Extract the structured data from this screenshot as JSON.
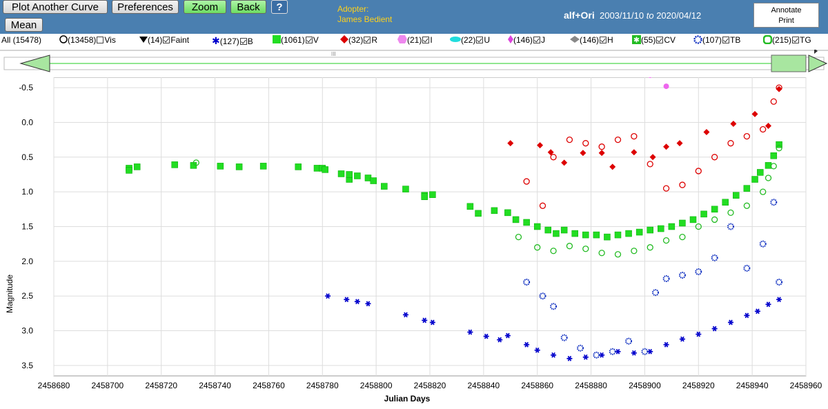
{
  "toolbar": {
    "plot_another": "Plot Another Curve",
    "preferences": "Preferences",
    "zoom": "Zoom",
    "back": "Back",
    "help": "?",
    "mean": "Mean"
  },
  "adopter": {
    "label": "Adopter:",
    "name": "James Bedient"
  },
  "star": {
    "name": "alf+Ori",
    "date_from": "2003/11/10",
    "to": "to",
    "date_to": "2020/04/12"
  },
  "annotate": {
    "line1": "Annotate",
    "line2": "Print"
  },
  "legend": {
    "all": "All (15478)",
    "vis": "(13458)",
    "vis_label": "Vis",
    "faint": "(14)",
    "faint_label": "Faint",
    "b": "(127)",
    "b_label": "B",
    "v": "(1061)",
    "v_label": "V",
    "r": "(32)",
    "r_label": "R",
    "i": "(21)",
    "i_label": "I",
    "u": "(22)",
    "u_label": "U",
    "j": "(146)",
    "j_label": "J",
    "h": "(146)",
    "h_label": "H",
    "cv": "(55)",
    "cv_label": "CV",
    "tb": "(107)",
    "tb_label": "TB",
    "tg": "(215)",
    "tg_label": "TG"
  },
  "colors": {
    "topbar": "#4a7fb0",
    "V": "#22dd22",
    "TG": "#22bb22",
    "B": "#0000cc",
    "TB": "#1030c0",
    "R": "#dd0000",
    "J": "#ee66ee"
  },
  "chart_data": {
    "type": "scatter",
    "xlabel": "Julian Days",
    "ylabel": "Magnitude",
    "xlim": [
      2458680,
      2458960
    ],
    "ylim": [
      -0.65,
      3.65
    ],
    "y_inverted": true,
    "x_ticks": [
      "2458680",
      "2458700",
      "2458720",
      "2458740",
      "2458760",
      "2458780",
      "2458800",
      "2458820",
      "2458840",
      "2458860",
      "2458880",
      "2458900",
      "2458920",
      "2458940",
      "2458960"
    ],
    "y_ticks": [
      "-0.5",
      "0.0",
      "0.5",
      "1.0",
      "1.5",
      "2.0",
      "2.5",
      "3.0",
      "3.5"
    ],
    "series": [
      {
        "name": "V",
        "marker": "filled-square",
        "x": [
          2458708,
          2458708,
          2458711,
          2458725,
          2458732,
          2458742,
          2458749,
          2458758,
          2458771,
          2458778,
          2458780,
          2458781,
          2458787,
          2458790,
          2458790,
          2458793,
          2458797,
          2458799,
          2458803,
          2458811,
          2458818,
          2458818,
          2458821,
          2458835,
          2458838,
          2458844,
          2458849,
          2458852,
          2458856,
          2458860,
          2458864,
          2458867,
          2458870,
          2458874,
          2458878,
          2458882,
          2458886,
          2458890,
          2458894,
          2458898,
          2458902,
          2458906,
          2458910,
          2458914,
          2458918,
          2458922,
          2458926,
          2458930,
          2458934,
          2458938,
          2458941,
          2458943,
          2458946,
          2458948,
          2458950
        ],
        "y": [
          0.66,
          0.69,
          0.64,
          0.61,
          0.62,
          0.63,
          0.64,
          0.63,
          0.64,
          0.66,
          0.66,
          0.68,
          0.74,
          0.82,
          0.75,
          0.77,
          0.8,
          0.84,
          0.92,
          0.96,
          1.05,
          1.07,
          1.04,
          1.21,
          1.31,
          1.27,
          1.3,
          1.4,
          1.44,
          1.5,
          1.55,
          1.6,
          1.55,
          1.6,
          1.62,
          1.62,
          1.65,
          1.62,
          1.6,
          1.58,
          1.55,
          1.53,
          1.5,
          1.45,
          1.4,
          1.32,
          1.25,
          1.15,
          1.05,
          0.95,
          0.82,
          0.72,
          0.62,
          0.48,
          0.32
        ]
      },
      {
        "name": "TG",
        "marker": "open-circle",
        "x": [
          2458733,
          2458853,
          2458860,
          2458866,
          2458872,
          2458878,
          2458884,
          2458890,
          2458896,
          2458902,
          2458908,
          2458914,
          2458920,
          2458926,
          2458932,
          2458938,
          2458944,
          2458946,
          2458948,
          2458950
        ],
        "y": [
          0.58,
          1.65,
          1.8,
          1.85,
          1.78,
          1.82,
          1.88,
          1.9,
          1.85,
          1.8,
          1.7,
          1.65,
          1.5,
          1.4,
          1.3,
          1.2,
          1.0,
          0.8,
          0.63,
          0.37
        ]
      },
      {
        "name": "R",
        "marker": "filled-diamond",
        "x": [
          2458850,
          2458861,
          2458865,
          2458870,
          2458877,
          2458884,
          2458888,
          2458896,
          2458903,
          2458908,
          2458913,
          2458923,
          2458933,
          2458941,
          2458946,
          2458950
        ],
        "y": [
          0.3,
          0.33,
          0.43,
          0.58,
          0.44,
          0.44,
          0.64,
          0.43,
          0.5,
          0.35,
          0.3,
          0.14,
          0.02,
          -0.12,
          0.05,
          -0.48
        ]
      },
      {
        "name": "TR",
        "marker": "open-circle",
        "x": [
          2458856,
          2458862,
          2458866,
          2458872,
          2458878,
          2458884,
          2458890,
          2458896,
          2458902,
          2458908,
          2458914,
          2458920,
          2458926,
          2458932,
          2458938,
          2458944,
          2458948,
          2458950
        ],
        "y": [
          0.85,
          1.2,
          0.5,
          0.25,
          0.3,
          0.35,
          0.25,
          0.2,
          0.6,
          0.95,
          0.9,
          0.7,
          0.5,
          0.3,
          0.2,
          0.1,
          -0.3,
          -0.5
        ]
      },
      {
        "name": "B",
        "marker": "star",
        "x": [
          2458782,
          2458789,
          2458793,
          2458797,
          2458811,
          2458818,
          2458821,
          2458835,
          2458841,
          2458846,
          2458849,
          2458856,
          2458860,
          2458866,
          2458872,
          2458878,
          2458884,
          2458890,
          2458896,
          2458902,
          2458908,
          2458914,
          2458920,
          2458926,
          2458932,
          2458938,
          2458942,
          2458946,
          2458950
        ],
        "y": [
          2.5,
          2.55,
          2.58,
          2.61,
          2.77,
          2.85,
          2.88,
          3.02,
          3.08,
          3.13,
          3.07,
          3.2,
          3.28,
          3.35,
          3.4,
          3.38,
          3.35,
          3.3,
          3.32,
          3.3,
          3.2,
          3.12,
          3.05,
          2.97,
          2.88,
          2.78,
          2.72,
          2.62,
          2.55
        ]
      },
      {
        "name": "TB",
        "marker": "open-circle",
        "x": [
          2458856,
          2458862,
          2458866,
          2458870,
          2458876,
          2458882,
          2458888,
          2458894,
          2458900,
          2458904,
          2458908,
          2458914,
          2458920,
          2458926,
          2458932,
          2458938,
          2458944,
          2458948,
          2458950
        ],
        "y": [
          2.3,
          2.5,
          2.65,
          3.1,
          3.25,
          3.35,
          3.3,
          3.15,
          3.3,
          2.45,
          2.25,
          2.2,
          2.15,
          1.95,
          1.5,
          2.1,
          1.75,
          1.15,
          2.3
        ]
      },
      {
        "name": "J",
        "marker": "filled-circle",
        "x": [
          2458902,
          2458908
        ],
        "y": [
          -0.68,
          -0.52
        ]
      }
    ]
  }
}
